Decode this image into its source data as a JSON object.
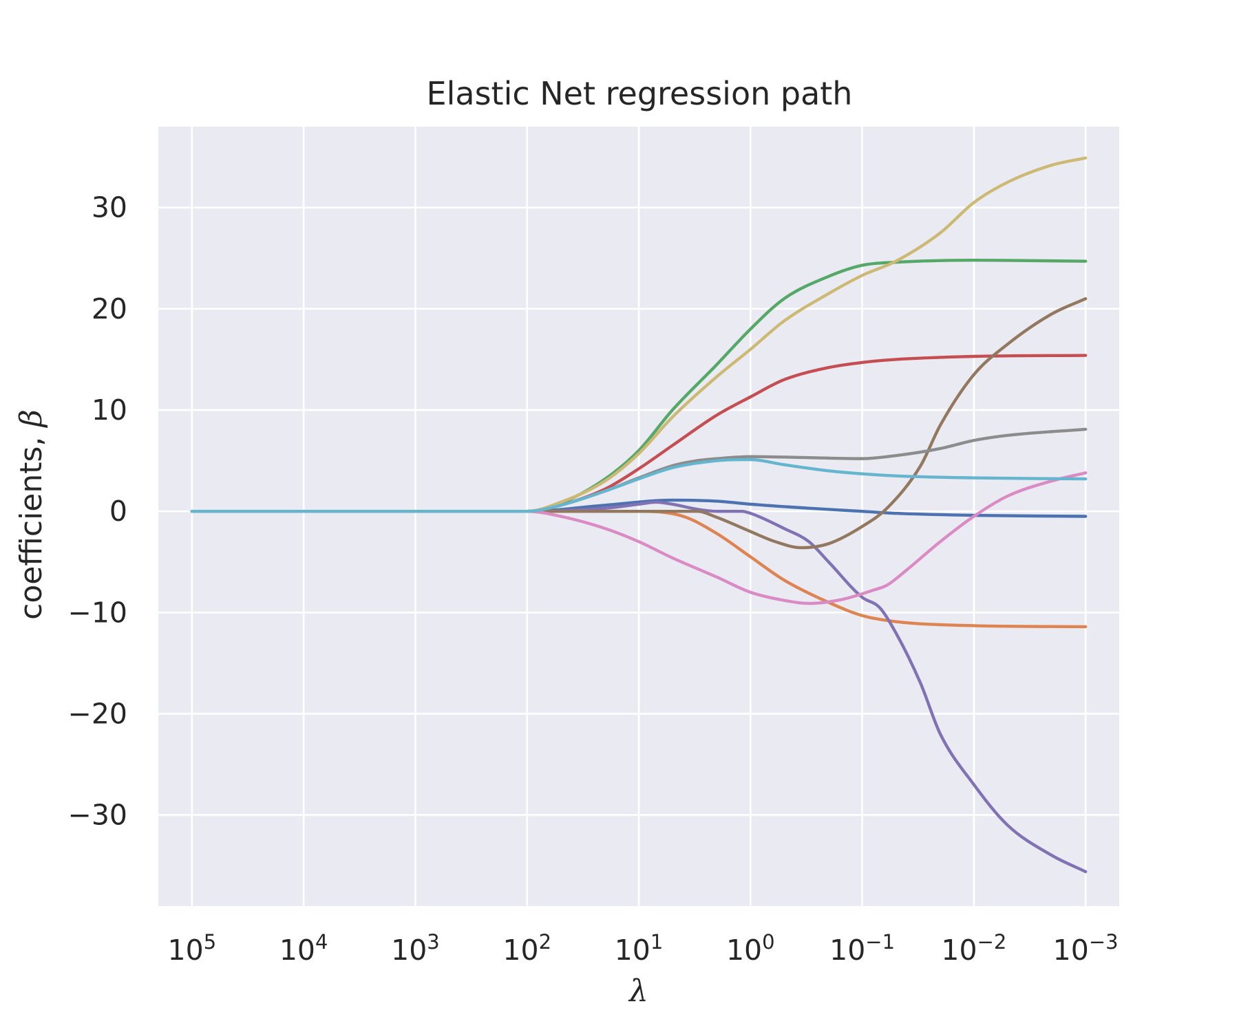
{
  "chart_data": {
    "type": "line",
    "title": "Elastic Net regression path",
    "xlabel": "λ",
    "ylabel_text": "coefficients, ",
    "ylabel_symbol": "β",
    "x_scale": "log",
    "x_axis_reversed": true,
    "xlim": [
      200000,
      0.0005
    ],
    "ylim": [
      -39,
      38
    ],
    "grid": true,
    "legend": "none",
    "x_ticks": [
      {
        "value": 100000,
        "base": "10",
        "exp": "5"
      },
      {
        "value": 10000,
        "base": "10",
        "exp": "4"
      },
      {
        "value": 1000,
        "base": "10",
        "exp": "3"
      },
      {
        "value": 100,
        "base": "10",
        "exp": "2"
      },
      {
        "value": 10,
        "base": "10",
        "exp": "1"
      },
      {
        "value": 1,
        "base": "10",
        "exp": "0"
      },
      {
        "value": 0.1,
        "base": "10",
        "exp": "−1"
      },
      {
        "value": 0.01,
        "base": "10",
        "exp": "−2"
      },
      {
        "value": 0.001,
        "base": "10",
        "exp": "−3"
      }
    ],
    "y_ticks": [
      {
        "value": 30,
        "label": "30"
      },
      {
        "value": 20,
        "label": "20"
      },
      {
        "value": 10,
        "label": "10"
      },
      {
        "value": 0,
        "label": "0"
      },
      {
        "value": -10,
        "label": "−10"
      },
      {
        "value": -20,
        "label": "−20"
      },
      {
        "value": -30,
        "label": "−30"
      }
    ],
    "colors": {
      "background": "#eaeaf2",
      "grid": "#ffffff",
      "text": "#262626"
    },
    "series": [
      {
        "color": "#4c72b0",
        "points": [
          [
            100000,
            0
          ],
          [
            100,
            0
          ],
          [
            20,
            0.6
          ],
          [
            5,
            1.1
          ],
          [
            2,
            1.0
          ],
          [
            1,
            0.7
          ],
          [
            0.3,
            0.3
          ],
          [
            0.1,
            0
          ],
          [
            0.05,
            -0.2
          ],
          [
            0.01,
            -0.4
          ],
          [
            0.001,
            -0.5
          ]
        ]
      },
      {
        "color": "#dd8452",
        "points": [
          [
            100000,
            0
          ],
          [
            100,
            0
          ],
          [
            10,
            0
          ],
          [
            4,
            -0.5
          ],
          [
            2,
            -2.2
          ],
          [
            1,
            -4.5
          ],
          [
            0.5,
            -6.8
          ],
          [
            0.2,
            -9
          ],
          [
            0.1,
            -10.3
          ],
          [
            0.05,
            -10.9
          ],
          [
            0.01,
            -11.3
          ],
          [
            0.001,
            -11.4
          ]
        ]
      },
      {
        "color": "#55a868",
        "points": [
          [
            100000,
            0
          ],
          [
            100,
            0
          ],
          [
            50,
            0.8
          ],
          [
            20,
            3.2
          ],
          [
            10,
            6
          ],
          [
            5,
            10
          ],
          [
            2,
            14.5
          ],
          [
            1,
            18
          ],
          [
            0.5,
            21
          ],
          [
            0.2,
            23.2
          ],
          [
            0.1,
            24.3
          ],
          [
            0.05,
            24.6
          ],
          [
            0.01,
            24.8
          ],
          [
            0.001,
            24.7
          ]
        ]
      },
      {
        "color": "#c44e52",
        "points": [
          [
            100000,
            0
          ],
          [
            100,
            0
          ],
          [
            50,
            0.6
          ],
          [
            20,
            2.2
          ],
          [
            10,
            4.2
          ],
          [
            5,
            6.5
          ],
          [
            2,
            9.5
          ],
          [
            1,
            11.3
          ],
          [
            0.5,
            13
          ],
          [
            0.2,
            14.2
          ],
          [
            0.1,
            14.7
          ],
          [
            0.05,
            15
          ],
          [
            0.01,
            15.3
          ],
          [
            0.001,
            15.4
          ]
        ]
      },
      {
        "color": "#8172b3",
        "points": [
          [
            100000,
            0
          ],
          [
            100,
            0
          ],
          [
            20,
            0.3
          ],
          [
            10,
            0.7
          ],
          [
            7,
            0.9
          ],
          [
            5,
            0.7
          ],
          [
            3,
            0.2
          ],
          [
            2,
            0
          ],
          [
            1.2,
            0
          ],
          [
            1,
            -0.2
          ],
          [
            0.5,
            -1.7
          ],
          [
            0.3,
            -3
          ],
          [
            0.2,
            -5
          ],
          [
            0.1,
            -8.5
          ],
          [
            0.07,
            -9.5
          ],
          [
            0.05,
            -12
          ],
          [
            0.03,
            -17
          ],
          [
            0.02,
            -22
          ],
          [
            0.01,
            -27
          ],
          [
            0.005,
            -31
          ],
          [
            0.002,
            -34
          ],
          [
            0.001,
            -35.6
          ]
        ]
      },
      {
        "color": "#937860",
        "points": [
          [
            100000,
            0
          ],
          [
            100,
            0
          ],
          [
            10,
            0
          ],
          [
            3,
            0
          ],
          [
            2,
            -0.6
          ],
          [
            1,
            -2
          ],
          [
            0.6,
            -3
          ],
          [
            0.35,
            -3.6
          ],
          [
            0.2,
            -3.2
          ],
          [
            0.1,
            -1.5
          ],
          [
            0.06,
            0.3
          ],
          [
            0.03,
            4.5
          ],
          [
            0.02,
            8.5
          ],
          [
            0.01,
            13.5
          ],
          [
            0.005,
            16.5
          ],
          [
            0.002,
            19.5
          ],
          [
            0.001,
            21
          ]
        ]
      },
      {
        "color": "#da8bc3",
        "points": [
          [
            100000,
            0
          ],
          [
            100,
            0
          ],
          [
            50,
            -0.5
          ],
          [
            20,
            -1.7
          ],
          [
            10,
            -3
          ],
          [
            5,
            -4.6
          ],
          [
            2,
            -6.5
          ],
          [
            1,
            -8
          ],
          [
            0.5,
            -8.8
          ],
          [
            0.3,
            -9.1
          ],
          [
            0.15,
            -8.7
          ],
          [
            0.08,
            -7.8
          ],
          [
            0.06,
            -7.3
          ],
          [
            0.04,
            -5.8
          ],
          [
            0.02,
            -3
          ],
          [
            0.01,
            -0.5
          ],
          [
            0.005,
            1.5
          ],
          [
            0.002,
            3
          ],
          [
            0.001,
            3.8
          ]
        ]
      },
      {
        "color": "#8c8c8c",
        "points": [
          [
            100000,
            0
          ],
          [
            100,
            0
          ],
          [
            50,
            0.6
          ],
          [
            20,
            2
          ],
          [
            10,
            3.3
          ],
          [
            5,
            4.5
          ],
          [
            3,
            5
          ],
          [
            2,
            5.2
          ],
          [
            1,
            5.4
          ],
          [
            0.3,
            5.3
          ],
          [
            0.1,
            5.2
          ],
          [
            0.05,
            5.5
          ],
          [
            0.02,
            6.2
          ],
          [
            0.01,
            7
          ],
          [
            0.005,
            7.5
          ],
          [
            0.001,
            8.1
          ]
        ]
      },
      {
        "color": "#ccb974",
        "points": [
          [
            100000,
            0
          ],
          [
            100,
            0
          ],
          [
            50,
            0.9
          ],
          [
            20,
            3
          ],
          [
            10,
            5.7
          ],
          [
            5,
            9.3
          ],
          [
            2,
            13.3
          ],
          [
            1,
            16
          ],
          [
            0.5,
            18.8
          ],
          [
            0.2,
            21.5
          ],
          [
            0.1,
            23.3
          ],
          [
            0.05,
            24.7
          ],
          [
            0.02,
            27.5
          ],
          [
            0.01,
            30.5
          ],
          [
            0.005,
            32.5
          ],
          [
            0.002,
            34.2
          ],
          [
            0.001,
            34.9
          ]
        ]
      },
      {
        "color": "#64b5cd",
        "points": [
          [
            100000,
            0
          ],
          [
            100,
            0
          ],
          [
            50,
            0.6
          ],
          [
            20,
            2
          ],
          [
            10,
            3.2
          ],
          [
            5,
            4.3
          ],
          [
            2,
            5
          ],
          [
            1.2,
            5.1
          ],
          [
            1,
            5.1
          ],
          [
            0.5,
            4.6
          ],
          [
            0.2,
            4
          ],
          [
            0.1,
            3.7
          ],
          [
            0.05,
            3.5
          ],
          [
            0.01,
            3.3
          ],
          [
            0.001,
            3.2
          ]
        ]
      }
    ]
  }
}
